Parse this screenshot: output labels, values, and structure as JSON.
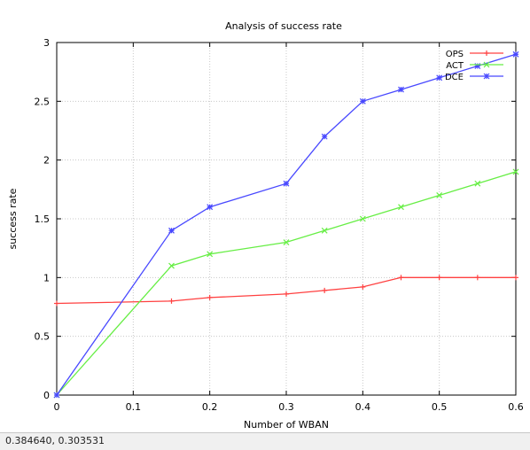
{
  "chart_data": {
    "type": "line",
    "title": "Analysis of success rate",
    "xlabel": "Number of WBAN",
    "ylabel": "success rate",
    "xlim": [
      0,
      0.6
    ],
    "ylim": [
      0,
      3
    ],
    "x_ticks": [
      "0",
      "0.1",
      "0.2",
      "0.3",
      "0.4",
      "0.5",
      "0.6"
    ],
    "y_ticks": [
      "0",
      "0.5",
      "1",
      "1.5",
      "2",
      "2.5",
      "3"
    ],
    "grid": true,
    "legend_position": "top-right",
    "series": [
      {
        "name": "OPS",
        "color": "#ff4040",
        "marker": "plus",
        "x": [
          0,
          0.15,
          0.2,
          0.3,
          0.35,
          0.4,
          0.45,
          0.5,
          0.55,
          0.6
        ],
        "y": [
          0.78,
          0.8,
          0.83,
          0.86,
          0.89,
          0.92,
          1.0,
          1.0,
          1.0,
          1.0
        ]
      },
      {
        "name": "ACT",
        "color": "#66ee44",
        "marker": "x",
        "x": [
          0,
          0.15,
          0.2,
          0.3,
          0.35,
          0.4,
          0.45,
          0.5,
          0.55,
          0.6
        ],
        "y": [
          0,
          1.1,
          1.2,
          1.3,
          1.4,
          1.5,
          1.6,
          1.7,
          1.8,
          1.9
        ]
      },
      {
        "name": "DCE",
        "color": "#4848ff",
        "marker": "star",
        "x": [
          0,
          0.15,
          0.2,
          0.3,
          0.35,
          0.4,
          0.45,
          0.5,
          0.55,
          0.6
        ],
        "y": [
          0,
          1.4,
          1.6,
          1.8,
          2.2,
          2.5,
          2.6,
          2.7,
          2.8,
          2.9
        ]
      }
    ]
  },
  "status_bar": {
    "coordinates": "0.384640,  0.303531"
  }
}
